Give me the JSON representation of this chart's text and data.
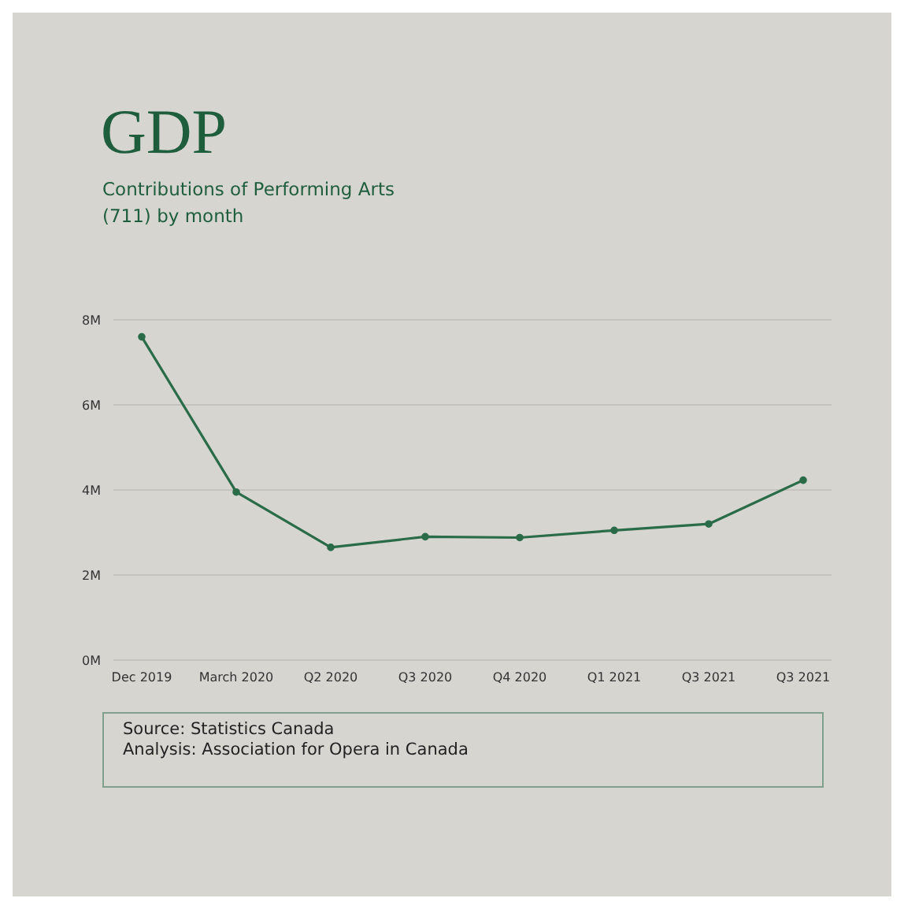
{
  "chart_data": {
    "type": "line",
    "title": "GDP",
    "subtitle": "Contributions of Performing Arts (711) by month",
    "categories": [
      "Dec 2019",
      "March 2020",
      "Q2 2020",
      "Q3 2020",
      "Q4 2020",
      "Q1 2021",
      "Q3 2021",
      "Q3 2021"
    ],
    "series": [
      {
        "color": "#2a6b48",
        "values": [
          7.6,
          3.95,
          2.65,
          2.9,
          2.88,
          3.05,
          3.2,
          4.23
        ]
      }
    ],
    "ylim": [
      0,
      8
    ],
    "yticks": [
      {
        "value": 0,
        "label": "0M"
      },
      {
        "value": 2,
        "label": "2M"
      },
      {
        "value": 4,
        "label": "4M"
      },
      {
        "value": 6,
        "label": "6M"
      },
      {
        "value": 8,
        "label": "8M"
      }
    ],
    "grid": "y",
    "marker": "circle",
    "line_style": "solid",
    "legend": false,
    "annotations": [
      "Source: Statistics Canada",
      "Analysis: Association for Opera in Canada"
    ]
  }
}
